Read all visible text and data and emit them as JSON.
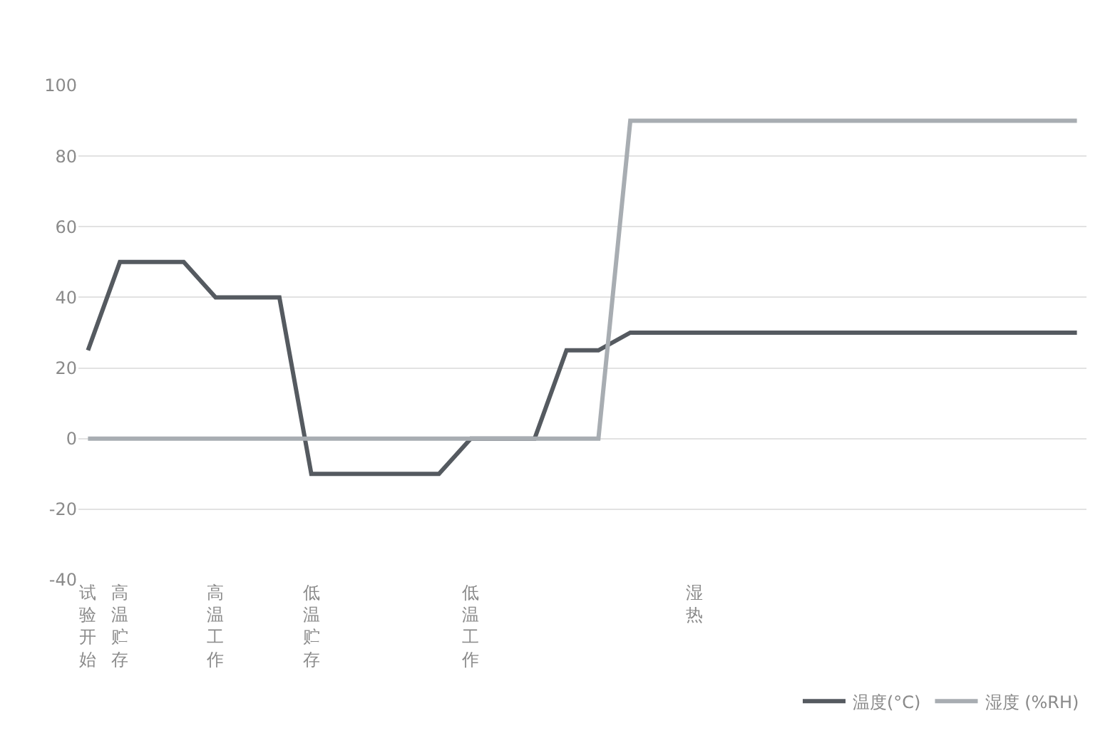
{
  "chart_data": {
    "type": "line",
    "categories": [
      "试验开始",
      "高温贮存",
      null,
      null,
      "高温工作",
      null,
      null,
      "低温贮存",
      null,
      null,
      null,
      null,
      "低温工作",
      null,
      null,
      null,
      null,
      null,
      null,
      "湿热",
      null,
      null,
      null,
      null,
      null,
      null,
      null,
      null,
      null,
      null,
      null,
      null
    ],
    "series": [
      {
        "name": "温度(°C)",
        "color": "#555a60",
        "values": [
          25,
          50,
          50,
          50,
          40,
          40,
          40,
          -10,
          -10,
          -10,
          -10,
          -10,
          0,
          0,
          0,
          25,
          25,
          30,
          30,
          30,
          30,
          30,
          30,
          30,
          30,
          30,
          30,
          30,
          30,
          30,
          30,
          30
        ]
      },
      {
        "name": "湿度 (%RH)",
        "color": "#a8adb2",
        "values": [
          0,
          0,
          0,
          0,
          0,
          0,
          0,
          0,
          0,
          0,
          0,
          0,
          0,
          0,
          0,
          0,
          0,
          90,
          90,
          90,
          90,
          90,
          90,
          90,
          90,
          90,
          90,
          90,
          90,
          90,
          90,
          90
        ]
      }
    ],
    "ylim": [
      -40,
      100
    ],
    "yticks": [
      -40,
      -20,
      0,
      20,
      40,
      60,
      80,
      100
    ],
    "grid": "y",
    "legend": "bottom right",
    "marker": "none",
    "line_style": "solid"
  }
}
